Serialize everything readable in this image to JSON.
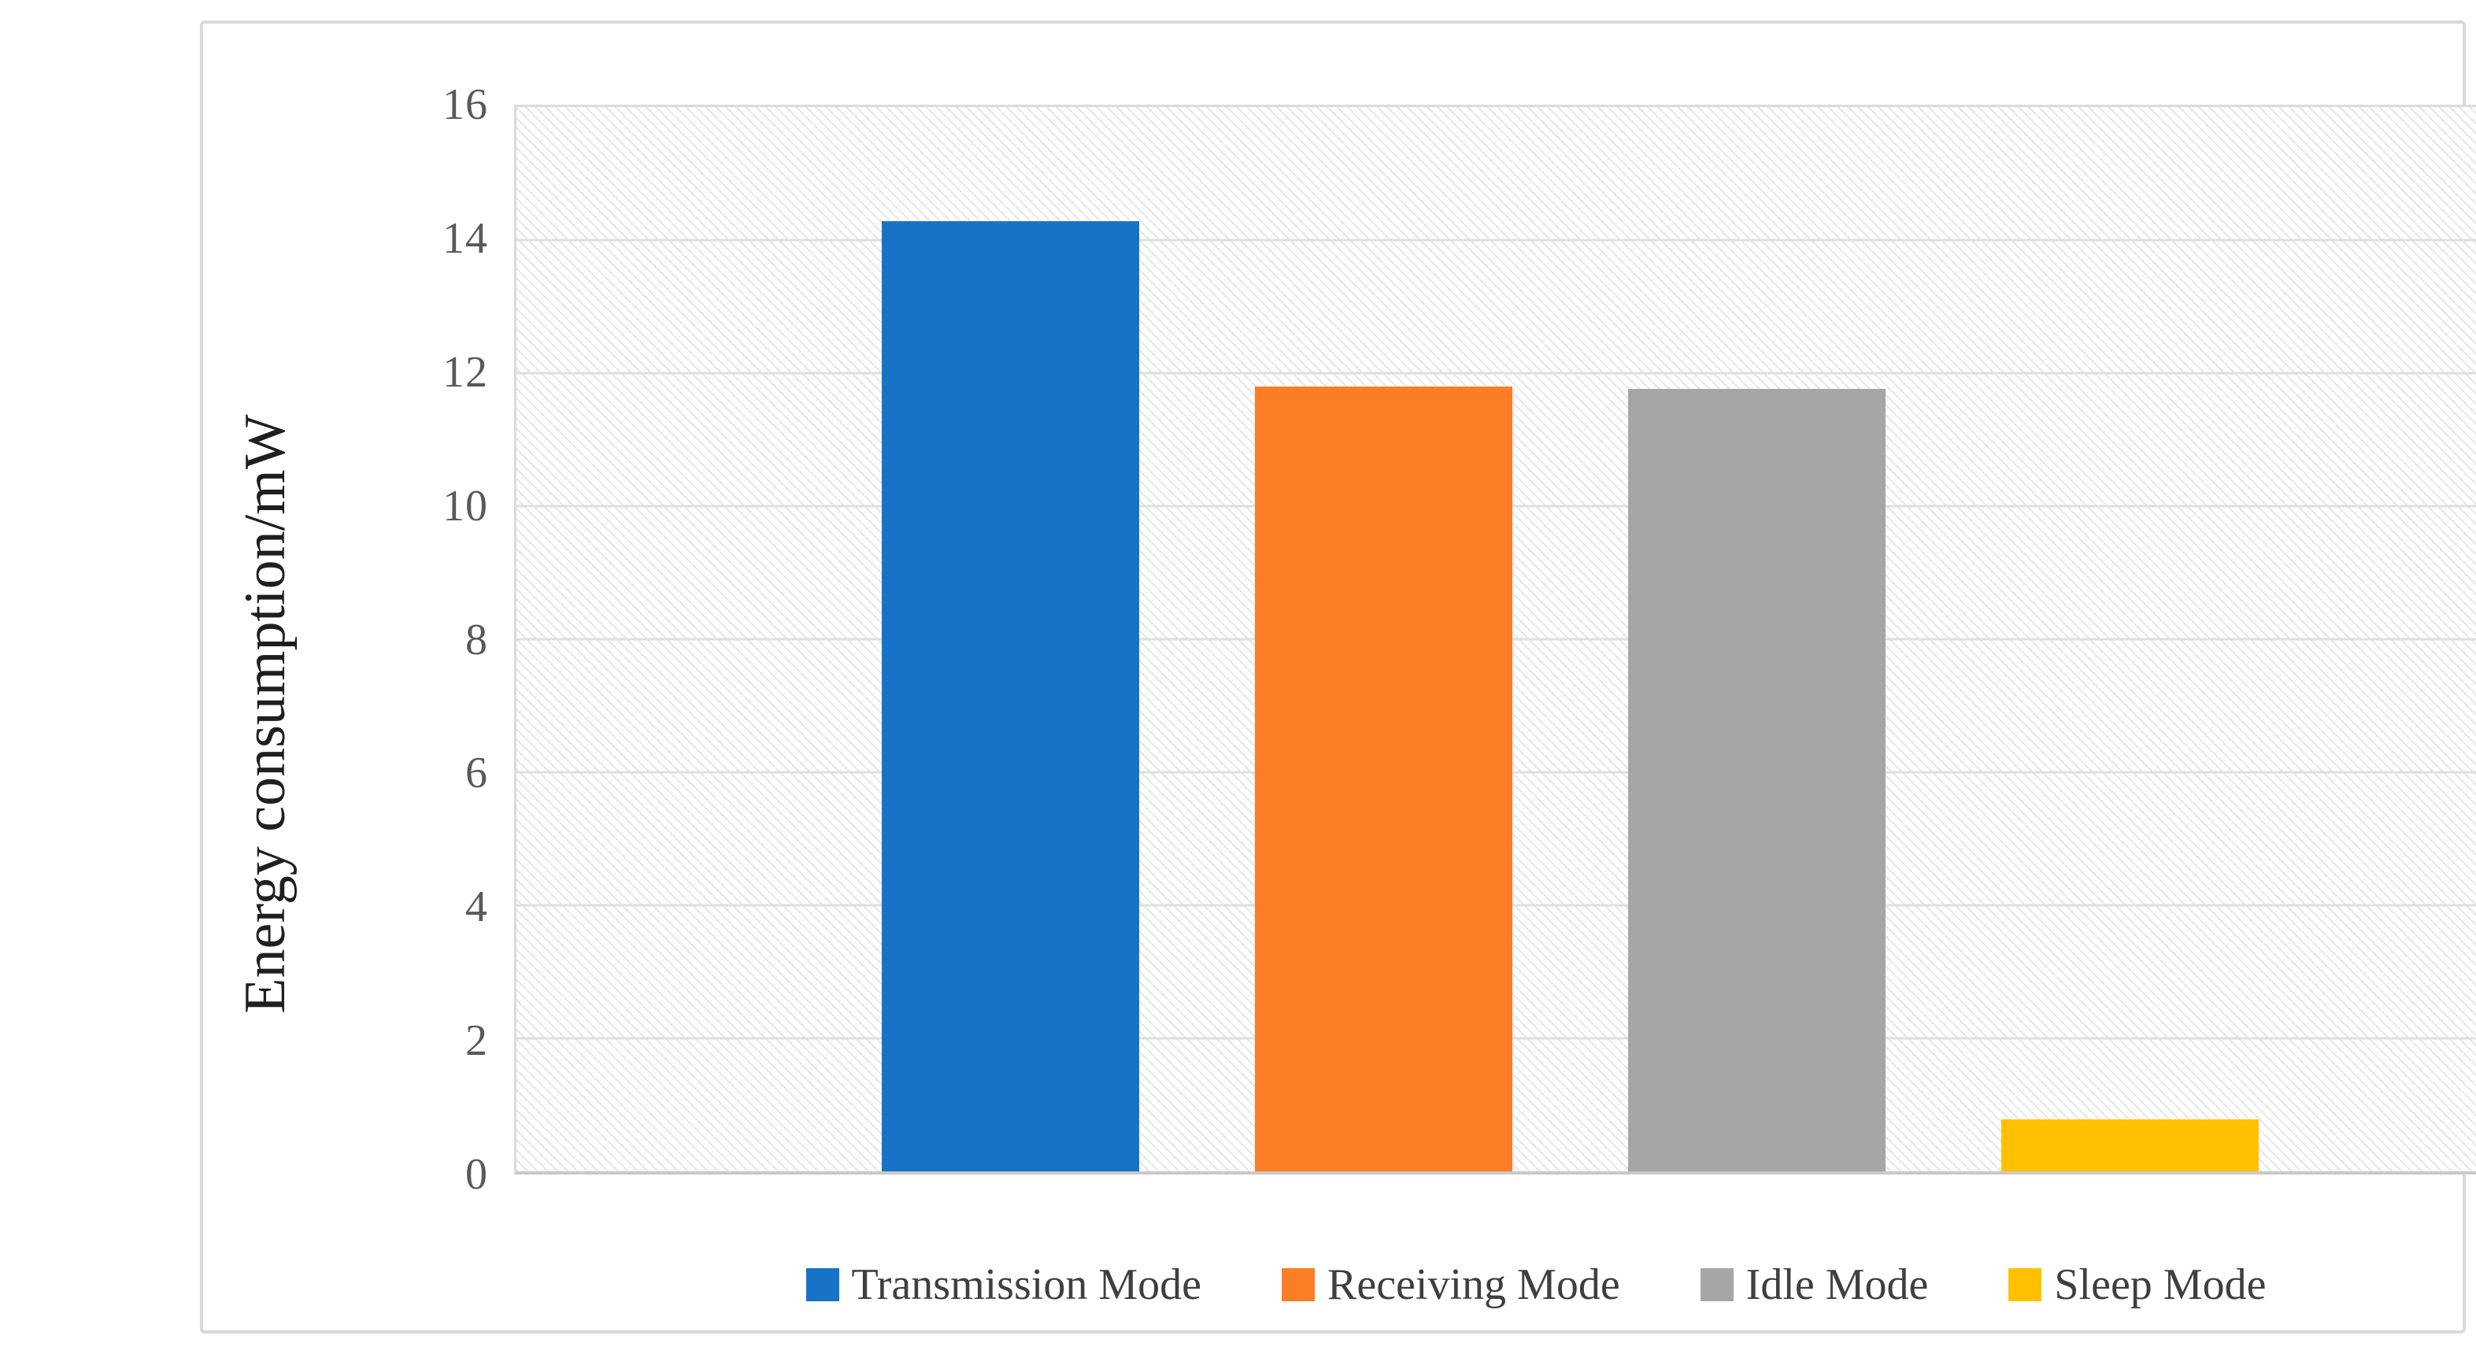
{
  "chart_data": {
    "type": "bar",
    "title": "",
    "categories": [
      "Transmission Mode",
      "Receiving Mode",
      "Idle Mode",
      "Sleep Mode"
    ],
    "values": [
      14.28,
      11.8,
      11.76,
      0.78
    ],
    "colors": [
      "#1673C8",
      "#FB7D26",
      "#A6A6A6",
      "#FFC000"
    ],
    "xlabel": "",
    "ylabel": "Energy consumption/mW",
    "ylim": [
      0,
      16
    ],
    "y_ticks": [
      0,
      2,
      4,
      6,
      8,
      10,
      12,
      14,
      16
    ],
    "grid": "horizontal gridlines on, light gray",
    "plot_background": "light diagonal hatch pattern",
    "legend_position": "bottom center",
    "legend_items": [
      {
        "label": "Transmission Mode",
        "color": "#1673C8"
      },
      {
        "label": "Receiving Mode",
        "color": "#FB7D26"
      },
      {
        "label": "Idle Mode",
        "color": "#A6A6A6"
      },
      {
        "label": "Sleep Mode",
        "color": "#FFC000"
      }
    ],
    "tick_label_color": "#595959",
    "gridline_color": "#DFDFDF",
    "axis_line_color": "#C9C9C9",
    "frame_border_color": "#D9D9D9"
  }
}
